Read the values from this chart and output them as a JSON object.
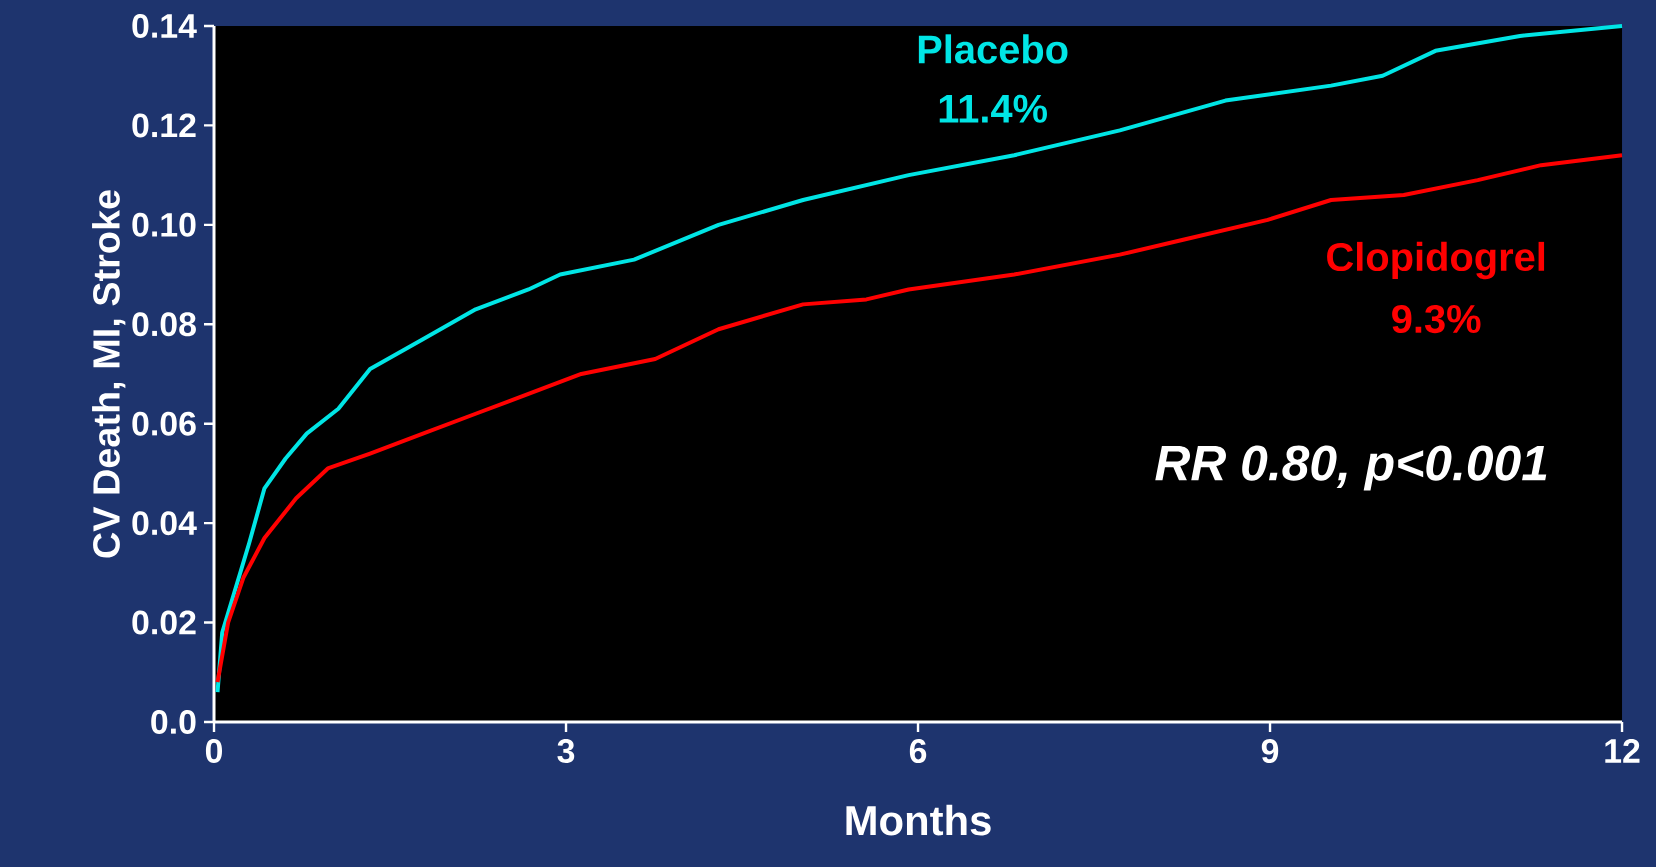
{
  "chart_data": {
    "type": "line",
    "xlabel": "Months",
    "ylabel": "CV Death, MI, Stroke",
    "xlim": [
      0,
      12
    ],
    "ylim": [
      0,
      0.14
    ],
    "xticks": [
      0,
      3,
      6,
      9,
      12
    ],
    "yticks": [
      {
        "value": 0,
        "label": "0.0"
      },
      {
        "value": 0.02,
        "label": "0.02"
      },
      {
        "value": 0.04,
        "label": "0.04"
      },
      {
        "value": 0.06,
        "label": "0.06"
      },
      {
        "value": 0.08,
        "label": "0.08"
      },
      {
        "value": 0.1,
        "label": "0.10"
      },
      {
        "value": 0.12,
        "label": "0.12"
      },
      {
        "value": 0.14,
        "label": "0.14"
      }
    ],
    "annotations": [
      "11.4%",
      "9.3%",
      "RR 0.80, p<0.001"
    ],
    "series": [
      {
        "name": "Placebo",
        "color": "#00e5e5",
        "x": [
          0.03,
          0.07,
          0.16,
          0.3,
          0.43,
          0.61,
          0.79,
          1.06,
          1.33,
          1.78,
          2.23,
          2.68,
          2.95,
          3.58,
          4.3,
          5.02,
          5.92,
          6.82,
          7.72,
          8.62,
          9.52,
          9.96,
          10.41,
          11.13,
          12
        ],
        "values": [
          0.006,
          0.018,
          0.025,
          0.036,
          0.047,
          0.053,
          0.058,
          0.063,
          0.071,
          0.077,
          0.083,
          0.087,
          0.09,
          0.093,
          0.1,
          0.105,
          0.11,
          0.114,
          0.119,
          0.125,
          0.128,
          0.13,
          0.135,
          0.138,
          0.14
        ]
      },
      {
        "name": "Clopidogrel",
        "color": "#ff0000",
        "x": [
          0.03,
          0.12,
          0.25,
          0.43,
          0.7,
          0.97,
          1.33,
          1.78,
          2.23,
          2.68,
          3.13,
          3.76,
          4.3,
          5.02,
          5.56,
          5.92,
          6.82,
          7.72,
          8.26,
          8.98,
          9.52,
          10.14,
          10.77,
          11.31,
          12
        ],
        "values": [
          0.008,
          0.02,
          0.029,
          0.037,
          0.045,
          0.051,
          0.054,
          0.058,
          0.062,
          0.066,
          0.07,
          0.073,
          0.079,
          0.084,
          0.085,
          0.087,
          0.09,
          0.094,
          0.097,
          0.101,
          0.105,
          0.106,
          0.109,
          0.112,
          0.114
        ]
      }
    ]
  }
}
